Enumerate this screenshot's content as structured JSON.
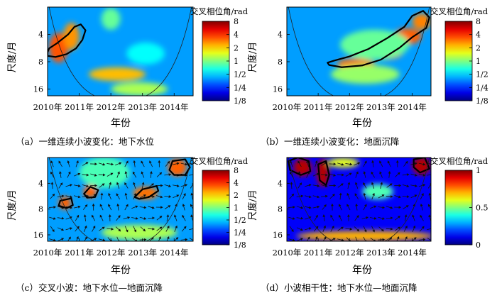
{
  "chart_data": [
    {
      "panel": "a",
      "type": "heatmap",
      "caption": "（a）一维连续小波变化：地下水位",
      "xlabel": "年份",
      "ylabel": "尺度/月",
      "x_tick_labels": [
        "2010年",
        "2011年",
        "2012年",
        "2013年",
        "2014年"
      ],
      "x_ticks": [
        2010,
        2011,
        2012,
        2013,
        2014
      ],
      "xlim": [
        2010,
        2014.6
      ],
      "y_tick_labels": [
        "4",
        "8",
        "16"
      ],
      "y_ticks": [
        4,
        8,
        16
      ],
      "y_scale": "log2",
      "ylim": [
        2,
        19
      ],
      "colorbar": {
        "title": "交叉相位角/rad",
        "tick_labels": [
          "8",
          "4",
          "2",
          "1",
          "1/2",
          "1/4",
          "1/8"
        ],
        "ticks": [
          8,
          4,
          2,
          1,
          0.5,
          0.25,
          0.125
        ],
        "scale": "log2"
      },
      "regions": [
        {
          "x": 2010.35,
          "y": 5.6,
          "rx": 0.3,
          "ry": 0.55,
          "v": 3.4
        },
        {
          "x": 2010.75,
          "y": 4.2,
          "rx": 0.25,
          "ry": 0.5,
          "v": 2.6
        },
        {
          "x": 2012.2,
          "y": 11,
          "rx": 0.9,
          "ry": 0.25,
          "v": 2.2
        },
        {
          "x": 2012.9,
          "y": 16,
          "rx": 0.9,
          "ry": 0.25,
          "v": 1.2
        },
        {
          "x": 2013.1,
          "y": 6.5,
          "rx": 0.6,
          "ry": 0.4,
          "v": 0.6
        },
        {
          "x": 2012.0,
          "y": 2.7,
          "rx": 0.3,
          "ry": 0.4,
          "v": 0.9
        }
      ],
      "contours": [
        [
          [
            2010.0,
            6.9
          ],
          [
            2010.25,
            7.1
          ],
          [
            2010.6,
            6.6
          ],
          [
            2010.9,
            5.7
          ],
          [
            2011.1,
            4.6
          ],
          [
            2011.2,
            3.6
          ],
          [
            2011.05,
            3.1
          ],
          [
            2010.85,
            3.3
          ],
          [
            2010.65,
            4.0
          ],
          [
            2010.3,
            5.0
          ],
          [
            2010.05,
            5.7
          ],
          [
            2010.0,
            6.3
          ]
        ]
      ],
      "coi": "cone"
    },
    {
      "panel": "b",
      "type": "heatmap",
      "caption": "（b）一维连续小波变化：地面沉降",
      "xlabel": "年份",
      "ylabel": "尺度/月",
      "x_tick_labels": [
        "2010年",
        "2011年",
        "2012年",
        "2013年",
        "2014年"
      ],
      "x_ticks": [
        2010,
        2011,
        2012,
        2013,
        2014
      ],
      "xlim": [
        2010,
        2014.6
      ],
      "y_tick_labels": [
        "4",
        "8",
        "16"
      ],
      "y_ticks": [
        4,
        8,
        16
      ],
      "y_scale": "log2",
      "ylim": [
        2,
        19
      ],
      "colorbar": {
        "title": "交叉相位角/rad",
        "tick_labels": [
          "8",
          "4",
          "2",
          "1",
          "1/2",
          "1/4",
          "1/8"
        ],
        "ticks": [
          8,
          4,
          2,
          1,
          0.5,
          0.25,
          0.125
        ],
        "scale": "log2"
      },
      "regions": [
        {
          "x": 2012.2,
          "y": 8.5,
          "rx": 0.6,
          "ry": 0.2,
          "v": 3
        },
        {
          "x": 2013.1,
          "y": 6.4,
          "rx": 0.6,
          "ry": 0.25,
          "v": 3.4
        },
        {
          "x": 2013.85,
          "y": 4.2,
          "rx": 0.45,
          "ry": 0.3,
          "v": 3.2
        },
        {
          "x": 2014.3,
          "y": 2.9,
          "rx": 0.3,
          "ry": 0.3,
          "v": 2.8
        },
        {
          "x": 2012.8,
          "y": 5.2,
          "rx": 1.1,
          "ry": 0.55,
          "v": 0.9
        },
        {
          "x": 2012.5,
          "y": 11,
          "rx": 1.1,
          "ry": 0.35,
          "v": 1.1
        }
      ],
      "contours": [
        [
          [
            2011.35,
            8.7
          ],
          [
            2011.75,
            9.2
          ],
          [
            2012.4,
            8.8
          ],
          [
            2013.0,
            7.6
          ],
          [
            2013.6,
            5.6
          ],
          [
            2014.0,
            4.3
          ],
          [
            2014.45,
            3.4
          ],
          [
            2014.55,
            2.6
          ],
          [
            2014.35,
            2.2
          ],
          [
            2014.0,
            2.5
          ],
          [
            2013.75,
            3.3
          ],
          [
            2013.2,
            4.4
          ],
          [
            2012.6,
            5.8
          ],
          [
            2012.0,
            7.0
          ],
          [
            2011.5,
            7.8
          ],
          [
            2011.3,
            8.2
          ]
        ]
      ],
      "coi": "cone"
    },
    {
      "panel": "c",
      "type": "heatmap",
      "caption": "（c）交叉小波：地下水位—地面沉降",
      "xlabel": "年份",
      "ylabel": "尺度/月",
      "x_tick_labels": [
        "2010年",
        "2011年",
        "2012年",
        "2013年",
        "2014年"
      ],
      "x_ticks": [
        2010,
        2011,
        2012,
        2013,
        2014
      ],
      "xlim": [
        2010,
        2014.6
      ],
      "y_tick_labels": [
        "4",
        "8",
        "16"
      ],
      "y_ticks": [
        4,
        8,
        16
      ],
      "y_scale": "log2",
      "ylim": [
        2,
        19
      ],
      "colorbar": {
        "title": "交叉相位角/rad",
        "tick_labels": [
          "8",
          "4",
          "2",
          "1",
          "1/2",
          "1/4",
          "1/8"
        ],
        "ticks": [
          8,
          4,
          2,
          1,
          0.5,
          0.25,
          0.125
        ],
        "scale": "log2"
      },
      "regions": [
        {
          "x": 2010.55,
          "y": 6.8,
          "rx": 0.2,
          "ry": 0.25,
          "v": 3.2
        },
        {
          "x": 2011.35,
          "y": 5.0,
          "rx": 0.22,
          "ry": 0.25,
          "v": 3.2
        },
        {
          "x": 2013.1,
          "y": 5.2,
          "rx": 0.4,
          "ry": 0.25,
          "v": 3.0
        },
        {
          "x": 2014.1,
          "y": 2.6,
          "rx": 0.3,
          "ry": 0.35,
          "v": 3.2
        },
        {
          "x": 2011.8,
          "y": 3.0,
          "rx": 0.8,
          "ry": 0.6,
          "v": 0.8
        },
        {
          "x": 2012.9,
          "y": 15,
          "rx": 1.2,
          "ry": 0.3,
          "v": 1.2
        }
      ],
      "contours": [
        [
          [
            2010.4,
            6.4
          ],
          [
            2010.75,
            6.0
          ],
          [
            2010.8,
            7.2
          ],
          [
            2010.6,
            7.8
          ],
          [
            2010.35,
            7.3
          ]
        ],
        [
          [
            2011.15,
            5.3
          ],
          [
            2011.35,
            4.4
          ],
          [
            2011.6,
            4.8
          ],
          [
            2011.5,
            5.8
          ],
          [
            2011.25,
            5.9
          ]
        ],
        [
          [
            2012.75,
            5.8
          ],
          [
            2013.0,
            4.7
          ],
          [
            2013.45,
            4.3
          ],
          [
            2013.5,
            4.9
          ],
          [
            2013.2,
            5.8
          ],
          [
            2012.9,
            6.1
          ]
        ],
        [
          [
            2013.85,
            2.8
          ],
          [
            2013.95,
            2.2
          ],
          [
            2014.35,
            2.1
          ],
          [
            2014.5,
            2.6
          ],
          [
            2014.35,
            3.2
          ],
          [
            2014.0,
            3.2
          ]
        ]
      ],
      "phase_arrows": true,
      "coi": "cone"
    },
    {
      "panel": "d",
      "type": "heatmap",
      "caption": "（d）小波相干性：地下水位—地面沉降",
      "xlabel": "年份",
      "ylabel": "尺度/月",
      "x_tick_labels": [
        "2010年",
        "2011年",
        "2012年",
        "2013年",
        "2014年"
      ],
      "x_ticks": [
        2010,
        2011,
        2012,
        2013,
        2014
      ],
      "xlim": [
        2010,
        2014.6
      ],
      "y_tick_labels": [
        "4",
        "8",
        "16"
      ],
      "y_ticks": [
        4,
        8,
        16
      ],
      "y_scale": "log2",
      "ylim": [
        2,
        19
      ],
      "colorbar": {
        "title": "交叉相位角/rad",
        "tick_labels": [
          "1",
          "0.5",
          "0"
        ],
        "ticks": [
          1,
          0.5,
          0
        ],
        "scale": "linear"
      },
      "regions": [
        {
          "x": 2010.5,
          "y": 2.6,
          "rx": 0.3,
          "ry": 0.35,
          "v": 0.95
        },
        {
          "x": 2011.15,
          "y": 3.0,
          "rx": 0.2,
          "ry": 0.55,
          "v": 0.95
        },
        {
          "x": 2014.3,
          "y": 2.5,
          "rx": 0.3,
          "ry": 0.35,
          "v": 0.95
        },
        {
          "x": 2012.5,
          "y": 16.5,
          "rx": 2.2,
          "ry": 0.2,
          "v": 0.7
        },
        {
          "x": 2011.8,
          "y": 2.3,
          "rx": 0.5,
          "ry": 0.2,
          "v": 0.6
        },
        {
          "x": 2012.9,
          "y": 5.0,
          "rx": 0.5,
          "ry": 0.3,
          "v": 0.45
        }
      ],
      "contours": [
        [
          [
            2010.05,
            2.2
          ],
          [
            2010.35,
            2.0
          ],
          [
            2010.7,
            2.2
          ],
          [
            2010.75,
            2.9
          ],
          [
            2010.45,
            3.2
          ],
          [
            2010.1,
            2.8
          ]
        ],
        [
          [
            2011.0,
            2.4
          ],
          [
            2011.25,
            2.2
          ],
          [
            2011.35,
            3.2
          ],
          [
            2011.25,
            4.2
          ],
          [
            2011.05,
            3.7
          ]
        ],
        [
          [
            2014.05,
            2.1
          ],
          [
            2014.4,
            2.0
          ],
          [
            2014.55,
            2.7
          ],
          [
            2014.25,
            3.0
          ],
          [
            2014.05,
            2.6
          ]
        ]
      ],
      "phase_arrows": true,
      "coi": "cone"
    }
  ]
}
